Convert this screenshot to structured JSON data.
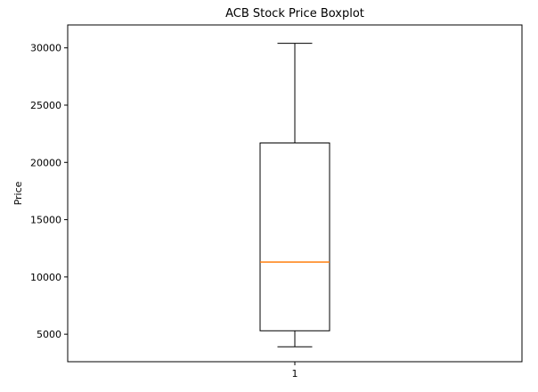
{
  "chart_data": {
    "type": "boxplot",
    "title": "ACB Stock Price Boxplot",
    "xlabel": "",
    "ylabel": "Price",
    "categories": [
      "1"
    ],
    "ylim": [
      2600,
      32000
    ],
    "yticks": [
      5000,
      10000,
      15000,
      20000,
      25000,
      30000
    ],
    "grid": false,
    "boxes": [
      {
        "category": "1",
        "whisker_low": 3900,
        "q1": 5300,
        "median": 11300,
        "q3": 21700,
        "whisker_high": 30400
      }
    ],
    "colors": {
      "box": "#000000",
      "median": "#ff7f0e",
      "axes": "#000000"
    }
  }
}
